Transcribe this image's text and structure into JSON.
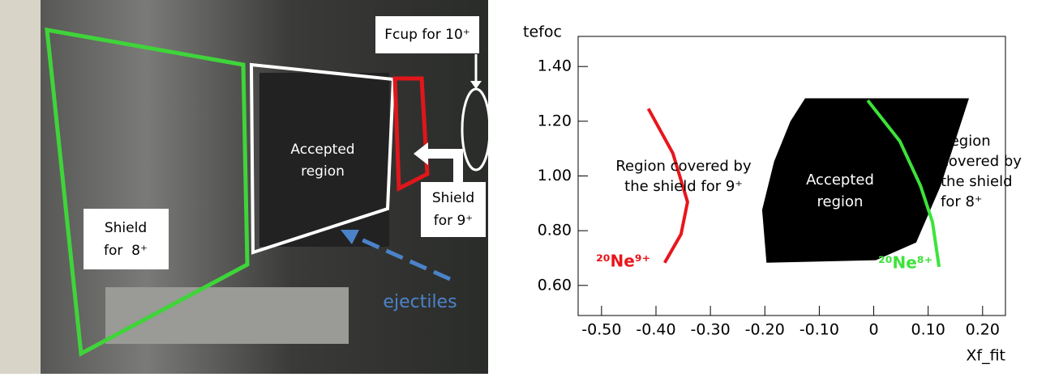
{
  "photo": {
    "fcup_label": "Fcup for 10⁺",
    "accepted_label": [
      "Accepted",
      "region"
    ],
    "shield9_label": [
      "Shield",
      "for 9⁺"
    ],
    "shield8_label": [
      "Shield",
      "for  8⁺"
    ],
    "ejectiles_label": "ejectiles"
  },
  "chart_data": {
    "type": "scatter",
    "x_label": "Xf_fit",
    "y_label": "tefoc",
    "xlim": [
      -0.543,
      0.242
    ],
    "ylim": [
      0.49,
      1.51
    ],
    "xticks": [
      {
        "value": -0.5,
        "label": "-0.50"
      },
      {
        "value": -0.4,
        "label": "-0.40"
      },
      {
        "value": -0.3,
        "label": "-0.30"
      },
      {
        "value": -0.2,
        "label": "-0.20"
      },
      {
        "value": -0.1,
        "label": "-0.10"
      },
      0,
      {
        "value": 0.1,
        "label": "0.10"
      },
      {
        "value": 0.2,
        "label": "0.20"
      }
    ],
    "yticks": [
      {
        "value": 0.6,
        "label": "0.60"
      },
      {
        "value": 0.8,
        "label": "0.80"
      },
      {
        "value": 1.0,
        "label": "1.00"
      },
      {
        "value": 1.2,
        "label": "1.20"
      },
      {
        "value": 1.4,
        "label": "1.40"
      }
    ],
    "region": {
      "color": "#000000",
      "x": [
        -0.126,
        0.175,
        0.123,
        0.078,
        0.004,
        -0.197,
        -0.205,
        -0.183,
        -0.153
      ],
      "y": [
        1.284,
        1.284,
        0.964,
        0.757,
        0.692,
        0.683,
        0.876,
        1.053,
        1.2
      ]
    },
    "series": [
      {
        "color": "#e8161b",
        "x": [
          -0.414,
          -0.369,
          -0.342,
          -0.354,
          -0.384
        ],
        "values": [
          1.246,
          1.083,
          0.905,
          0.787,
          0.683
        ]
      },
      {
        "color": "#3de33a",
        "x": [
          -0.011,
          0.048,
          0.086,
          0.108,
          0.12
        ],
        "values": [
          1.276,
          1.127,
          0.964,
          0.831,
          0.668
        ]
      }
    ],
    "annotations": {
      "shield9": [
        "Region covered by",
        "the shield for 9⁺"
      ],
      "accepted": [
        "Accepted",
        "region"
      ],
      "shield8": [
        "Region",
        "covered by",
        "the shield",
        "for 8⁺"
      ],
      "ne9": "²⁰Ne⁹⁺",
      "ne8": "²⁰Ne⁸⁺"
    }
  }
}
